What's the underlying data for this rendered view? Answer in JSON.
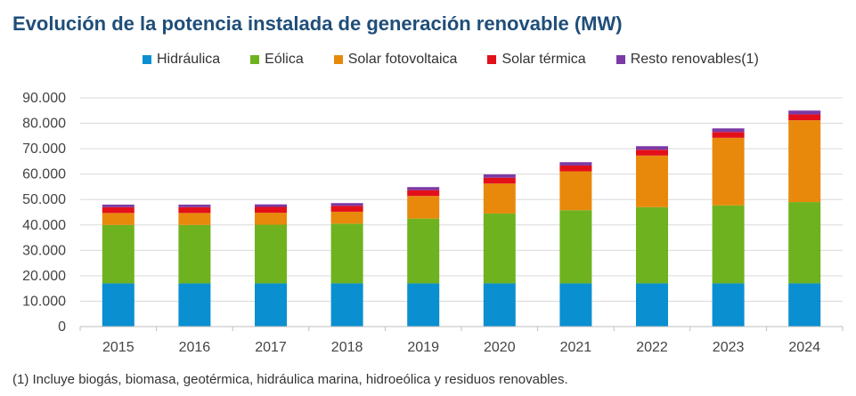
{
  "title": "Evolución de la potencia instalada de generación renovable (MW)",
  "footnote": "(1) Incluye biogás, biomasa, geotérmica, hidráulica marina, hidroeólica y residuos renovables.",
  "chart_data": {
    "type": "bar",
    "stacked": true,
    "title": "Evolución de la potencia instalada de generación renovable (MW)",
    "xlabel": "",
    "ylabel": "",
    "ylim": [
      0,
      90000
    ],
    "yticks": [
      0,
      10000,
      20000,
      30000,
      40000,
      50000,
      60000,
      70000,
      80000,
      90000
    ],
    "ytick_labels": [
      "0",
      "10.000",
      "20.000",
      "30.000",
      "40.000",
      "50.000",
      "60.000",
      "70.000",
      "80.000",
      "90.000"
    ],
    "grid": true,
    "legend_position": "top",
    "categories": [
      "2015",
      "2016",
      "2017",
      "2018",
      "2019",
      "2020",
      "2021",
      "2022",
      "2023",
      "2024"
    ],
    "series": [
      {
        "name": "Hidráulica",
        "color": "#0a8fd0",
        "values": [
          17000,
          17000,
          17000,
          17000,
          17000,
          17000,
          17000,
          17000,
          17000,
          17000
        ]
      },
      {
        "name": "Eólica",
        "color": "#6fb21f",
        "values": [
          23000,
          23000,
          23100,
          23500,
          25500,
          27500,
          28800,
          30000,
          30700,
          32000
        ]
      },
      {
        "name": "Solar fotovoltaica",
        "color": "#e8890c",
        "values": [
          4700,
          4700,
          4700,
          4700,
          8900,
          11800,
          15300,
          20300,
          26600,
          32200
        ]
      },
      {
        "name": "Solar térmica",
        "color": "#e3101a",
        "values": [
          2300,
          2300,
          2300,
          2300,
          2300,
          2300,
          2300,
          2300,
          2300,
          2300
        ]
      },
      {
        "name": "Resto renovables(1)",
        "color": "#7b3aa6",
        "values": [
          1000,
          1000,
          1000,
          1100,
          1200,
          1300,
          1300,
          1400,
          1400,
          1500
        ]
      }
    ]
  }
}
